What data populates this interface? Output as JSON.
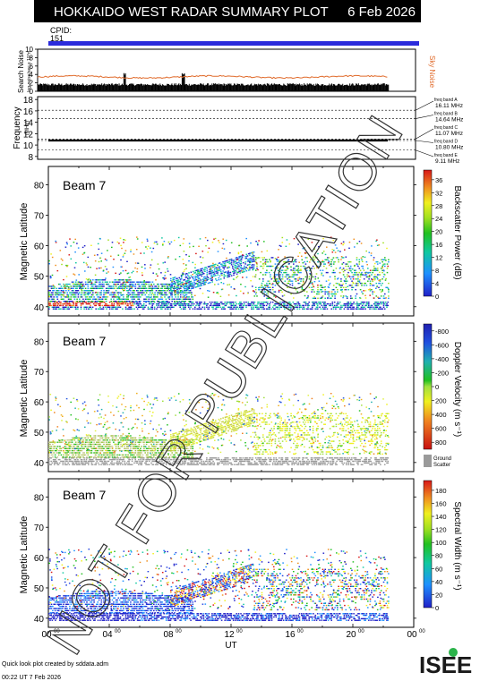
{
  "header": {
    "title": "HOKKAIDO WEST RADAR SUMMARY PLOT",
    "date": "6 Feb 2026"
  },
  "cpid": {
    "label": "CPID:",
    "value": "151"
  },
  "footer": {
    "credit": "Quick look plot created by sddata.adm",
    "timestamp": "00:22 UT  7 Feb 2026",
    "logo": "ISEE"
  },
  "watermark": "NOT FOR PUBLICATION",
  "colors": {
    "cpid_bar": "#2b2bdc",
    "sky_noise": "#e06a2a",
    "ground_scatter": "#9a9a9a"
  },
  "chart_data": [
    {
      "type": "bar",
      "name": "noise-panel",
      "ylabel": "Search Noise",
      "ylabel_sub": "log-noise/sec x 10^n",
      "yticks": [
        "0",
        "2",
        "4",
        "6",
        "8",
        "10"
      ],
      "ylim": [
        0,
        10
      ],
      "side_label": "Sky Noise",
      "search_noise_level": 1.3,
      "sky_noise_level": 3.4,
      "x": {
        "range_hours": [
          0,
          24
        ],
        "data_end_hour": 22.3
      }
    },
    {
      "type": "line",
      "name": "frequency-panel",
      "ylabel": "Frequency",
      "ylabel_sub": "(MHz)",
      "yticks": [
        "8",
        "10",
        "12",
        "14",
        "16",
        "18"
      ],
      "ylim": [
        7.5,
        18.5
      ],
      "operating_frequency_mhz": 10.8,
      "bands": [
        {
          "label": "freq band A",
          "mhz_label": "16.11 MHz",
          "mhz": 16.11
        },
        {
          "label": "freq band B",
          "mhz_label": "14.64 MHz",
          "mhz": 14.64
        },
        {
          "label": "freq band C",
          "mhz_label": "11.07 MHz",
          "mhz": 11.07
        },
        {
          "label": "freq band D",
          "mhz_label": "10.80 MHz",
          "mhz": 10.8
        },
        {
          "label": "freq band E",
          "mhz_label": "9.11 MHz",
          "mhz": 9.11
        }
      ]
    },
    {
      "type": "heatmap",
      "name": "power-panel",
      "beam": "Beam  7",
      "ylabel": "Magnetic Latitude",
      "yticks": [
        "40",
        "50",
        "60",
        "70",
        "80"
      ],
      "ylim": [
        37,
        86
      ],
      "colorbar_label": "Backscatter Power (dB)",
      "colorbar_ticks": [
        "0",
        "4",
        "8",
        "12",
        "16",
        "20",
        "24",
        "28",
        "32",
        "36"
      ],
      "colorbar_range": [
        0,
        39
      ]
    },
    {
      "type": "heatmap",
      "name": "velocity-panel",
      "beam": "Beam  7",
      "ylabel": "Magnetic Latitude",
      "yticks": [
        "40",
        "50",
        "60",
        "70",
        "80"
      ],
      "ylim": [
        37,
        86
      ],
      "colorbar_label": "Doppler Velocity (m s⁻¹)",
      "colorbar_ticks": [
        "800",
        "600",
        "400",
        "200",
        "0",
        "-200",
        "-400",
        "-600",
        "-800"
      ],
      "colorbar_range": [
        900,
        -900
      ],
      "ground_scatter_label": "Ground Scatter"
    },
    {
      "type": "heatmap",
      "name": "width-panel",
      "beam": "Beam  7",
      "ylabel": "Magnetic Latitude",
      "yticks": [
        "40",
        "50",
        "60",
        "70",
        "80"
      ],
      "ylim": [
        37,
        86
      ],
      "colorbar_label": "Spectral Width (m s⁻¹)",
      "colorbar_ticks": [
        "0",
        "20",
        "40",
        "60",
        "80",
        "100",
        "120",
        "140",
        "160",
        "180"
      ],
      "colorbar_range": [
        0,
        195
      ]
    }
  ],
  "time_axis": {
    "label": "UT",
    "tick_hours": [
      "00",
      "04",
      "08",
      "12",
      "16",
      "20",
      "00"
    ],
    "tick_superscript": "00"
  }
}
